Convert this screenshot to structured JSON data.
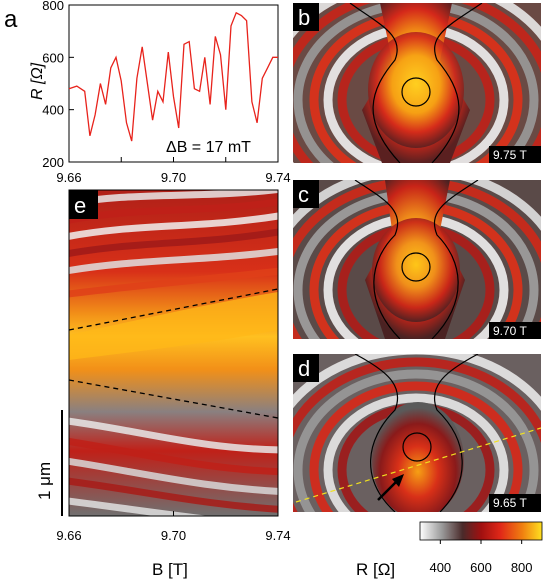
{
  "panel_labels": {
    "a": "a",
    "b": "b",
    "c": "c",
    "d": "d",
    "e": "e"
  },
  "panel_a": {
    "ylabel": "R [Ω]",
    "annotation": "ΔB = 17 mT",
    "y_ticks": [
      "800",
      "600",
      "400",
      "200"
    ],
    "x_ticks": [
      "9.66",
      "9.70",
      "9.74"
    ],
    "line_color": "#e8231c"
  },
  "chart_data": {
    "type": "line",
    "xlabel": "",
    "ylabel": "R [Ω]",
    "xlim": [
      9.66,
      9.74
    ],
    "ylim": [
      200,
      800
    ],
    "series": [
      {
        "x": [
          9.66,
          9.663,
          9.666,
          9.668,
          9.67,
          9.672,
          9.674,
          9.676,
          9.678,
          9.68,
          9.682,
          9.684,
          9.686,
          9.688,
          9.69,
          9.692,
          9.694,
          9.696,
          9.698,
          9.7,
          9.702,
          9.704,
          9.706,
          9.708,
          9.71,
          9.712,
          9.714,
          9.716,
          9.718,
          9.72,
          9.722,
          9.724,
          9.726,
          9.728,
          9.73,
          9.732,
          9.734,
          9.736,
          9.738,
          9.74
        ],
        "y": [
          480,
          490,
          470,
          300,
          380,
          500,
          420,
          560,
          600,
          510,
          350,
          280,
          520,
          640,
          500,
          360,
          470,
          430,
          620,
          450,
          330,
          650,
          660,
          480,
          470,
          600,
          420,
          680,
          610,
          400,
          720,
          770,
          760,
          740,
          430,
          350,
          520,
          560,
          600,
          600
        ]
      }
    ]
  },
  "panel_e": {
    "x_ticks": [
      "9.66",
      "9.70",
      "9.74"
    ],
    "xlabel": "B [T]",
    "scalebar_label": "1 μm"
  },
  "map_labels": {
    "b": "9.75 T",
    "c": "9.70 T",
    "d": "9.65 T"
  },
  "colorbar": {
    "title": "R [Ω]",
    "ticks": [
      "400",
      "600",
      "800"
    ],
    "colors": [
      "#ffffff",
      "#9a9a9a",
      "#4a2a2a",
      "#a01010",
      "#e02818",
      "#f08010",
      "#ffe020"
    ]
  }
}
